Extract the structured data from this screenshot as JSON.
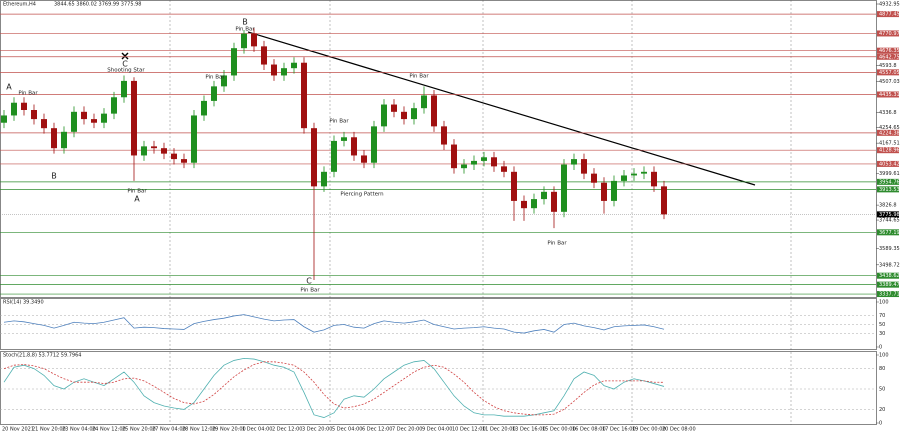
{
  "chart_data": {
    "type": "candlestick",
    "title": "Ethereum,H4",
    "ohlc_text": "3844.65 3860.02 3769.99 3775.98",
    "up_color": "#1f8f1f",
    "down_color": "#a01010",
    "open": [
      4280,
      4320,
      4390,
      4350,
      4300,
      4250,
      4140,
      4230,
      4340,
      4300,
      4280,
      4330,
      4420,
      4510,
      4100,
      4150,
      4140,
      4110,
      4080,
      4060,
      4320,
      4400,
      4480,
      4540,
      4690,
      4770,
      4700,
      4600,
      4540,
      4580,
      4610,
      4250,
      3930,
      4010,
      4180,
      4200,
      4100,
      4060,
      4260,
      4380,
      4340,
      4300,
      4360,
      4430,
      4260,
      4160,
      4030,
      4050,
      4070,
      4090,
      4040,
      4010,
      3850,
      3810,
      3860,
      3900,
      3790,
      4050,
      4080,
      4000,
      3950,
      3850,
      3960,
      3990,
      4000,
      4010,
      3930
    ],
    "high": [
      4350,
      4420,
      4420,
      4380,
      4330,
      4280,
      4260,
      4370,
      4370,
      4330,
      4360,
      4450,
      4540,
      4530,
      4180,
      4180,
      4170,
      4140,
      4110,
      4350,
      4430,
      4510,
      4570,
      4720,
      4790,
      4800,
      4730,
      4630,
      4610,
      4640,
      4640,
      4280,
      4040,
      4210,
      4230,
      4230,
      4130,
      4290,
      4410,
      4410,
      4370,
      4390,
      4480,
      4460,
      4290,
      4190,
      4080,
      4100,
      4120,
      4120,
      4070,
      4040,
      3880,
      3890,
      3930,
      3930,
      4080,
      4110,
      4110,
      4030,
      3980,
      3990,
      4020,
      4030,
      4040,
      4040,
      3960
    ],
    "low": [
      4250,
      4290,
      4320,
      4270,
      4220,
      4110,
      4110,
      4200,
      4270,
      4250,
      4250,
      4300,
      4390,
      3960,
      4070,
      4110,
      4080,
      4050,
      4030,
      4030,
      4290,
      4370,
      4450,
      4510,
      4660,
      4670,
      4570,
      4510,
      4510,
      4550,
      4220,
      3415,
      3900,
      3980,
      4150,
      4070,
      4030,
      4030,
      4230,
      4310,
      4270,
      4270,
      4330,
      4230,
      4130,
      4000,
      4000,
      4020,
      4040,
      4010,
      3980,
      3740,
      3740,
      3780,
      3830,
      3700,
      3760,
      4020,
      3970,
      3920,
      3780,
      3820,
      3930,
      3960,
      3970,
      3900,
      3750
    ],
    "close": [
      4320,
      4390,
      4350,
      4300,
      4250,
      4140,
      4230,
      4340,
      4300,
      4280,
      4330,
      4420,
      4510,
      4100,
      4150,
      4140,
      4110,
      4080,
      4060,
      4320,
      4400,
      4480,
      4540,
      4690,
      4770,
      4700,
      4600,
      4540,
      4580,
      4610,
      4250,
      3930,
      4010,
      4180,
      4200,
      4100,
      4060,
      4260,
      4380,
      4340,
      4300,
      4360,
      4430,
      4260,
      4160,
      4030,
      4050,
      4070,
      4090,
      4040,
      4010,
      3850,
      3810,
      3860,
      3900,
      3790,
      4050,
      4080,
      4000,
      3950,
      3850,
      3960,
      3990,
      4000,
      4010,
      3930,
      3776
    ],
    "ylim": [
      3321.5,
      4955
    ],
    "yticks": [
      4932.95,
      4593.8,
      4507.03,
      4336.8,
      4254.65,
      4167.51,
      3999.61,
      3826.8,
      3744.65,
      3589.35,
      3498.72
    ],
    "resistance_color": "#c0504d",
    "support_color": "#2e8b2e",
    "resistance_levels": [
      4877.45,
      4770.97,
      4676.35,
      4642.75,
      4557.05,
      4435.31,
      4224.38,
      4128.96,
      4053.42
    ],
    "support_levels": [
      3954.76,
      3913.53,
      3677.19,
      3438.62,
      3389.47,
      3337.71
    ],
    "last_price": 3775.98,
    "x_labels": [
      "20 Nov 2021",
      "21 Nov 20:00",
      "23 Nov 04:00",
      "24 Nov 12:00",
      "25 Nov 20:00",
      "27 Nov 04:00",
      "28 Nov 12:00",
      "29 Nov 20:00",
      "1 Dec 04:00",
      "2 Dec 12:00",
      "3 Dec 20:00",
      "5 Dec 04:00",
      "6 Dec 12:00",
      "7 Dec 20:00",
      "9 Dec 04:00",
      "10 Dec 12:00",
      "11 Dec 20:00",
      "13 Dec 16:00",
      "15 Dec 00:00",
      "16 Dec 08:00",
      "17 Dec 16:00",
      "19 Dec 00:00",
      "20 Dec 08:00"
    ],
    "annotations": [
      "A",
      "Pin Bar",
      "B",
      "C",
      "Shooting Star",
      "Pin Bar",
      "A",
      "B",
      "Pin Bar",
      "Pin Bar",
      "Pin Bar",
      "Piercing Pattern",
      "Pin Bar",
      "C",
      "Pin Bar",
      "Pin Bar"
    ],
    "rsi": {
      "label": "RSI(14) 39.3490",
      "color": "#4f81bd",
      "ylim": [
        0,
        100
      ],
      "yticks": [
        100,
        70,
        50,
        30,
        0
      ],
      "values": [
        55,
        58,
        56,
        52,
        48,
        42,
        48,
        55,
        53,
        52,
        55,
        60,
        65,
        42,
        44,
        43,
        41,
        40,
        39,
        52,
        57,
        61,
        64,
        69,
        72,
        67,
        62,
        58,
        60,
        61,
        45,
        33,
        38,
        48,
        50,
        44,
        42,
        52,
        58,
        55,
        53,
        56,
        60,
        50,
        45,
        40,
        42,
        43,
        45,
        42,
        40,
        33,
        31,
        36,
        39,
        33,
        50,
        53,
        47,
        43,
        38,
        45,
        47,
        48,
        49,
        45,
        39.35
      ]
    },
    "stoch": {
      "label": "Stoch(21,8,8) 53.7712 59.7964",
      "ylim": [
        0,
        100
      ],
      "yticks": [
        100,
        80,
        50,
        20,
        0
      ],
      "series": [
        {
          "name": "Main",
          "color": "#4fb0b0",
          "values": [
            60,
            82,
            85,
            80,
            70,
            55,
            50,
            60,
            65,
            60,
            55,
            65,
            75,
            60,
            40,
            30,
            25,
            22,
            20,
            30,
            50,
            70,
            85,
            92,
            95,
            94,
            90,
            85,
            82,
            75,
            45,
            12,
            8,
            15,
            35,
            40,
            38,
            50,
            65,
            75,
            85,
            90,
            92,
            80,
            60,
            40,
            25,
            15,
            12,
            12,
            10,
            10,
            10,
            12,
            15,
            18,
            40,
            65,
            75,
            70,
            55,
            50,
            60,
            65,
            62,
            58,
            53.77
          ]
        },
        {
          "name": "Signal",
          "color": "#d04040",
          "values": [
            80,
            85,
            86,
            84,
            80,
            72,
            65,
            60,
            60,
            60,
            58,
            60,
            65,
            66,
            62,
            54,
            45,
            36,
            30,
            28,
            32,
            42,
            55,
            68,
            78,
            86,
            90,
            90,
            88,
            85,
            75,
            60,
            42,
            28,
            22,
            24,
            28,
            35,
            45,
            55,
            65,
            75,
            82,
            85,
            82,
            72,
            60,
            45,
            33,
            24,
            18,
            15,
            13,
            12,
            12,
            13,
            20,
            32,
            45,
            56,
            62,
            62,
            62,
            62,
            62,
            60,
            59.8
          ]
        }
      ]
    }
  }
}
